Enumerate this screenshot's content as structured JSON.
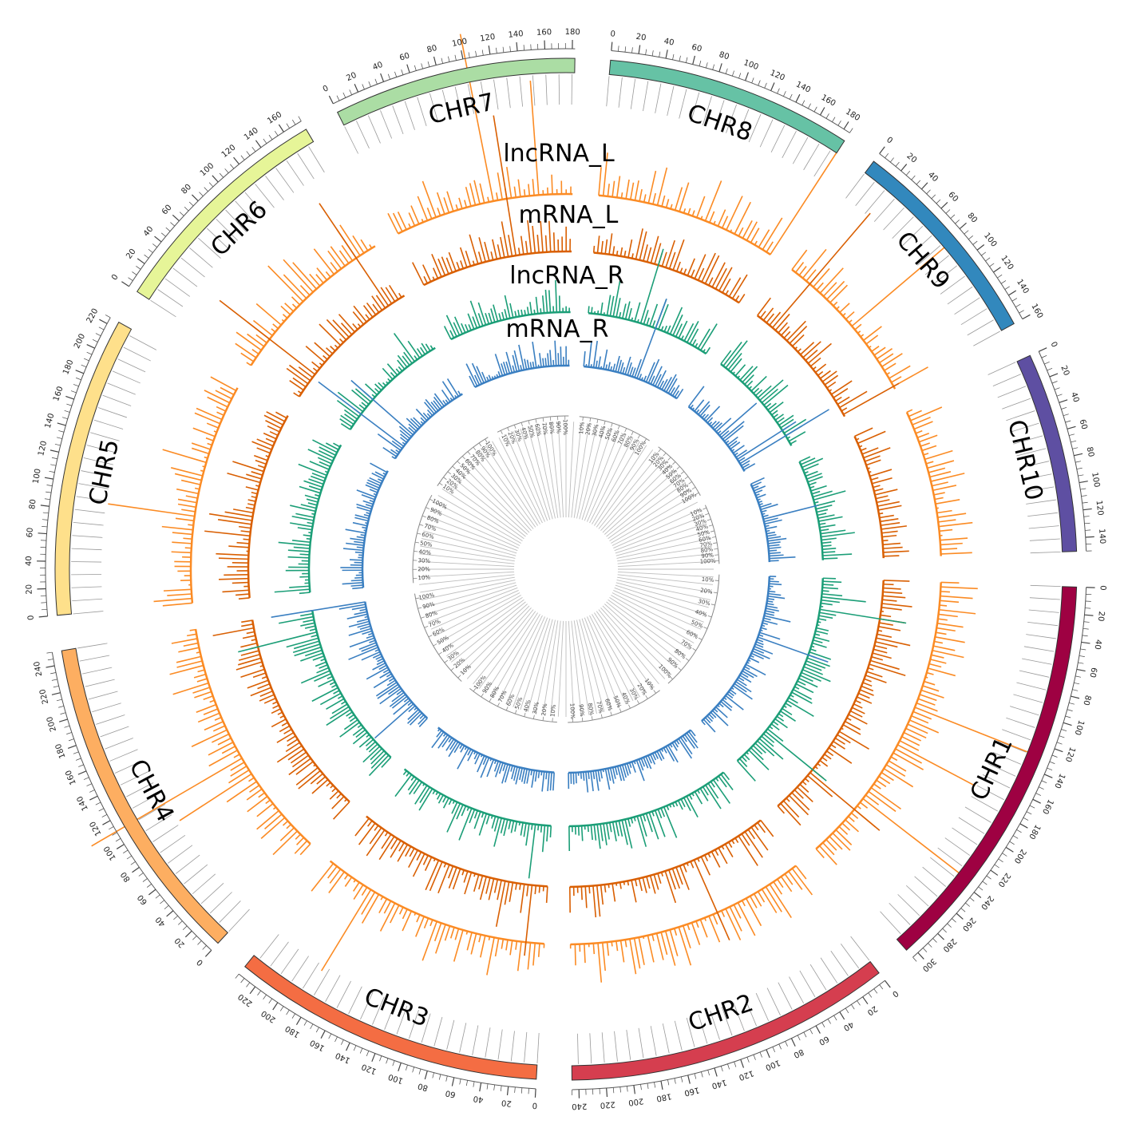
{
  "figure": {
    "track_labels": [
      "lncRNA_L",
      "mRNA_L",
      "lncRNA_R",
      "mRNA_R"
    ],
    "chromosomes": [
      {
        "label": "CHR1",
        "length": 305,
        "color": "#9e0142",
        "tick_step": 20
      },
      {
        "label": "CHR2",
        "length": 245,
        "color": "#d53e4f",
        "tick_step": 20
      },
      {
        "label": "CHR3",
        "length": 235,
        "color": "#f46d43",
        "tick_step": 20
      },
      {
        "label": "CHR4",
        "length": 250,
        "color": "#fdae61",
        "tick_step": 20
      },
      {
        "label": "CHR5",
        "length": 225,
        "color": "#fee08b",
        "tick_step": 20
      },
      {
        "label": "CHR6",
        "length": 175,
        "color": "#e6f598",
        "tick_step": 20
      },
      {
        "label": "CHR7",
        "length": 182,
        "color": "#abdda4",
        "tick_step": 20
      },
      {
        "label": "CHR8",
        "length": 185,
        "color": "#66c2a5",
        "tick_step": 20
      },
      {
        "label": "CHR9",
        "length": 160,
        "color": "#3288bd",
        "tick_step": 20
      },
      {
        "label": "CHR10",
        "length": 150,
        "color": "#5e4fa2",
        "tick_step": 20
      }
    ],
    "tracks": [
      {
        "name": "lncRNA_L",
        "color": "#fb8b24",
        "kind": "outer-orange"
      },
      {
        "name": "mRNA_L",
        "color": "#d95f02",
        "kind": "inner-orange"
      },
      {
        "name": "lncRNA_R",
        "color": "#1b9e77",
        "kind": "green"
      },
      {
        "name": "mRNA_R",
        "color": "#3a7fc1",
        "kind": "blue"
      }
    ],
    "percent_scale": [
      "10%",
      "20%",
      "30%",
      "40%",
      "50%",
      "60%",
      "70%",
      "80%",
      "90%",
      "100%"
    ]
  }
}
